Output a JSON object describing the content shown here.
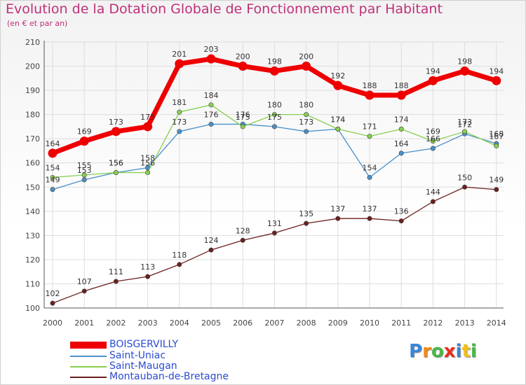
{
  "chart_data": {
    "type": "line",
    "title": "Evolution de la Dotation Globale de Fonctionnement par Habitant",
    "subtitle": "(en € et par an)",
    "xlabel": "",
    "ylabel": "",
    "x": [
      2000,
      2001,
      2002,
      2003,
      2004,
      2005,
      2006,
      2007,
      2008,
      2009,
      2010,
      2011,
      2012,
      2013,
      2014
    ],
    "ylim": [
      100,
      210
    ],
    "yticks": [
      100,
      110,
      120,
      130,
      140,
      150,
      160,
      170,
      180,
      190,
      200,
      210
    ],
    "grid": true,
    "legend_position": "bottom-left",
    "series": [
      {
        "name": "BOISGERVILLY",
        "color": "#ee0000",
        "values": [
          164,
          169,
          173,
          175,
          201,
          203,
          200,
          198,
          200,
          192,
          188,
          188,
          194,
          198,
          194
        ]
      },
      {
        "name": "Saint-Uniac",
        "color": "#4a90c8",
        "values": [
          149,
          153,
          156,
          158,
          173,
          176,
          176,
          175,
          173,
          174,
          154,
          164,
          166,
          172,
          168
        ]
      },
      {
        "name": "Saint-Maugan",
        "color": "#88d050",
        "values": [
          154,
          155,
          156,
          156,
          181,
          184,
          175,
          180,
          180,
          174,
          171,
          174,
          169,
          173,
          167
        ]
      },
      {
        "name": "Montauban-de-Bretagne",
        "color": "#6b1f1f",
        "values": [
          102,
          107,
          111,
          113,
          118,
          124,
          128,
          131,
          135,
          137,
          137,
          136,
          144,
          150,
          149
        ]
      }
    ]
  },
  "brand": {
    "letters": [
      "P",
      "r",
      "o",
      "x",
      "i",
      "t",
      "i"
    ],
    "colors": [
      "#3a86d8",
      "#f08a1c",
      "#48b848",
      "#e8301c",
      "#3a86d8",
      "#f0c020",
      "#48b848"
    ]
  }
}
